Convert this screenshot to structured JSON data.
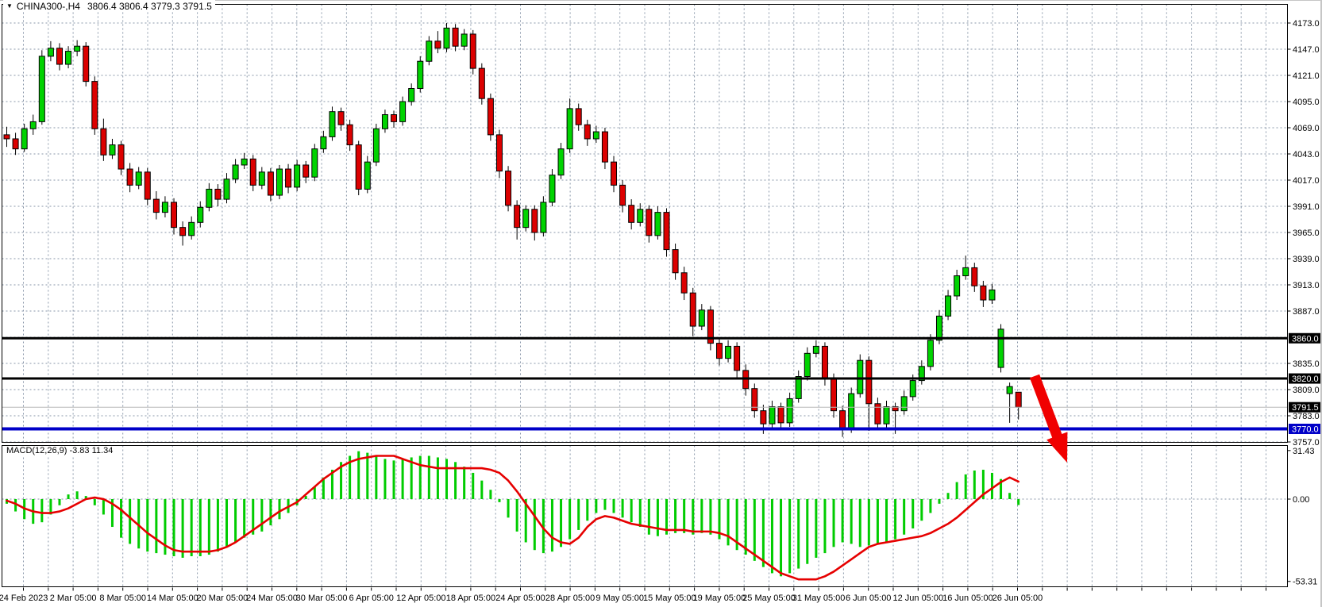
{
  "header": {
    "symbol_period": "CHINA300-,H4",
    "ohlc": "3806.4 3806.4 3779.3 3791.5"
  },
  "macd_label": "MACD(12,26,9) -3.83 11.34",
  "price_axis": {
    "ticks": [
      "4173.0",
      "4147.0",
      "4121.0",
      "4095.0",
      "4069.0",
      "4043.0",
      "4017.0",
      "3991.0",
      "3965.0",
      "3939.0",
      "3913.0",
      "3887.0",
      "3835.0",
      "3809.0",
      "3783.0",
      "3757.0"
    ]
  },
  "macd_axis": {
    "ticks": [
      "31.43",
      "0.00",
      "-53.31"
    ]
  },
  "time_axis": {
    "labels": [
      "24 Feb 2023",
      "2 Mar 05:00",
      "8 Mar 05:00",
      "14 Mar 05:00",
      "20 Mar 05:00",
      "24 Mar 05:00",
      "30 Mar 05:00",
      "6 Apr 05:00",
      "12 Apr 05:00",
      "18 Apr 05:00",
      "24 Apr 05:00",
      "28 Apr 05:00",
      "9 May 05:00",
      "15 May 05:00",
      "19 May 05:00",
      "25 May 05:00",
      "31 May 05:00",
      "6 Jun 05:00",
      "12 Jun 05:00",
      "16 Jun 05:00",
      "26 Jun 05:00"
    ]
  },
  "levels": [
    {
      "label": "3860.0",
      "value": 3860.0,
      "color": "#000000",
      "width": 3,
      "badge_bg": "#000000"
    },
    {
      "label": "3820.0",
      "value": 3820.0,
      "color": "#000000",
      "width": 3,
      "badge_bg": "#000000"
    },
    {
      "label": "3791.5",
      "value": 3791.5,
      "color": "#b8b8b8",
      "width": 1,
      "badge_bg": "#000000"
    },
    {
      "label": "3770.0",
      "value": 3770.0,
      "color": "#0000c8",
      "width": 4,
      "badge_bg": "#0000c8"
    }
  ],
  "annotation": {
    "type": "down-right-arrow",
    "color": "#f00000",
    "from": [
      1303,
      474
    ],
    "to": [
      1344,
      583
    ]
  },
  "colors": {
    "background": "#ffffff",
    "grid": "#8896a8",
    "bull": "#00d300",
    "bear": "#dc0000",
    "candle_outline": "#000000",
    "wick": "#000000",
    "signal_line": "#e60000",
    "macd_histogram": "#00cc00",
    "axis_text": "#000000",
    "badge_text": "#ffffff",
    "frame": "#000000"
  },
  "chart_data": [
    {
      "type": "candlestick",
      "title": "CHINA300- H4 price",
      "ylim": [
        3757,
        4173
      ],
      "y_step": 26,
      "ohlc": [
        [
          4062,
          4070,
          4050,
          4058
        ],
        [
          4058,
          4064,
          4042,
          4048
        ],
        [
          4048,
          4073,
          4045,
          4068
        ],
        [
          4068,
          4082,
          4062,
          4075
        ],
        [
          4075,
          4146,
          4072,
          4140
        ],
        [
          4140,
          4155,
          4135,
          4148
        ],
        [
          4148,
          4153,
          4126,
          4132
        ],
        [
          4132,
          4150,
          4128,
          4145
        ],
        [
          4145,
          4156,
          4140,
          4150
        ],
        [
          4150,
          4154,
          4110,
          4115
        ],
        [
          4115,
          4120,
          4062,
          4068
        ],
        [
          4068,
          4078,
          4036,
          4042
        ],
        [
          4042,
          4058,
          4038,
          4052
        ],
        [
          4052,
          4056,
          4022,
          4028
        ],
        [
          4028,
          4034,
          4005,
          4012
        ],
        [
          4012,
          4030,
          4008,
          4025
        ],
        [
          4025,
          4029,
          3992,
          3998
        ],
        [
          3998,
          4006,
          3978,
          3985
        ],
        [
          3985,
          4001,
          3980,
          3995
        ],
        [
          3995,
          3999,
          3963,
          3970
        ],
        [
          3970,
          3976,
          3952,
          3962
        ],
        [
          3962,
          3981,
          3958,
          3975
        ],
        [
          3975,
          3996,
          3970,
          3990
        ],
        [
          3990,
          4014,
          3986,
          4008
        ],
        [
          4008,
          4013,
          3991,
          3998
        ],
        [
          3998,
          4024,
          3994,
          4018
        ],
        [
          4018,
          4038,
          4014,
          4032
        ],
        [
          4032,
          4044,
          4028,
          4038
        ],
        [
          4038,
          4042,
          4006,
          4012
        ],
        [
          4012,
          4030,
          4008,
          4025
        ],
        [
          4025,
          4029,
          3996,
          4002
        ],
        [
          4002,
          4032,
          3998,
          4028
        ],
        [
          4028,
          4033,
          4004,
          4010
        ],
        [
          4010,
          4037,
          4006,
          4032
        ],
        [
          4032,
          4036,
          4014,
          4020
        ],
        [
          4020,
          4053,
          4016,
          4048
        ],
        [
          4048,
          4066,
          4044,
          4060
        ],
        [
          4060,
          4090,
          4056,
          4085
        ],
        [
          4085,
          4089,
          4066,
          4072
        ],
        [
          4072,
          4077,
          4046,
          4052
        ],
        [
          4052,
          4056,
          4002,
          4008
        ],
        [
          4008,
          4041,
          4004,
          4035
        ],
        [
          4035,
          4073,
          4031,
          4068
        ],
        [
          4068,
          4087,
          4064,
          4082
        ],
        [
          4082,
          4086,
          4069,
          4075
        ],
        [
          4075,
          4100,
          4071,
          4095
        ],
        [
          4095,
          4113,
          4091,
          4108
        ],
        [
          4108,
          4140,
          4104,
          4135
        ],
        [
          4135,
          4160,
          4131,
          4155
        ],
        [
          4155,
          4165,
          4143,
          4148
        ],
        [
          4148,
          4173,
          4144,
          4168
        ],
        [
          4168,
          4172,
          4145,
          4150
        ],
        [
          4150,
          4167,
          4146,
          4162
        ],
        [
          4162,
          4166,
          4122,
          4128
        ],
        [
          4128,
          4133,
          4092,
          4098
        ],
        [
          4098,
          4103,
          4056,
          4062
        ],
        [
          4062,
          4067,
          4019,
          4026
        ],
        [
          4026,
          4031,
          3986,
          3992
        ],
        [
          3992,
          3997,
          3958,
          3970
        ],
        [
          3970,
          3992,
          3966,
          3988
        ],
        [
          3988,
          3992,
          3957,
          3965
        ],
        [
          3965,
          4001,
          3961,
          3995
        ],
        [
          3995,
          4028,
          3991,
          4022
        ],
        [
          4022,
          4054,
          4018,
          4048
        ],
        [
          4048,
          4098,
          4044,
          4088
        ],
        [
          4088,
          4093,
          4066,
          4072
        ],
        [
          4072,
          4077,
          4051,
          4058
        ],
        [
          4058,
          4071,
          4054,
          4065
        ],
        [
          4065,
          4069,
          4028,
          4035
        ],
        [
          4035,
          4041,
          4005,
          4012
        ],
        [
          4012,
          4017,
          3985,
          3992
        ],
        [
          3992,
          3998,
          3968,
          3975
        ],
        [
          3975,
          3994,
          3971,
          3988
        ],
        [
          3988,
          3992,
          3955,
          3962
        ],
        [
          3962,
          3991,
          3958,
          3985
        ],
        [
          3985,
          3989,
          3941,
          3948
        ],
        [
          3948,
          3954,
          3918,
          3925
        ],
        [
          3925,
          3931,
          3898,
          3905
        ],
        [
          3905,
          3910,
          3862,
          3872
        ],
        [
          3872,
          3894,
          3868,
          3888
        ],
        [
          3888,
          3892,
          3848,
          3855
        ],
        [
          3855,
          3861,
          3833,
          3840
        ],
        [
          3840,
          3858,
          3836,
          3852
        ],
        [
          3852,
          3856,
          3821,
          3828
        ],
        [
          3828,
          3834,
          3803,
          3810
        ],
        [
          3810,
          3815,
          3781,
          3788
        ],
        [
          3788,
          3794,
          3765,
          3775
        ],
        [
          3775,
          3798,
          3771,
          3792
        ],
        [
          3792,
          3796,
          3769,
          3776
        ],
        [
          3776,
          3806,
          3772,
          3800
        ],
        [
          3800,
          3828,
          3796,
          3822
        ],
        [
          3822,
          3851,
          3818,
          3845
        ],
        [
          3845,
          3858,
          3841,
          3852
        ],
        [
          3852,
          3856,
          3813,
          3820
        ],
        [
          3820,
          3825,
          3781,
          3788
        ],
        [
          3788,
          3793,
          3762,
          3770
        ],
        [
          3770,
          3811,
          3766,
          3805
        ],
        [
          3805,
          3844,
          3801,
          3838
        ],
        [
          3838,
          3842,
          3768,
          3795
        ],
        [
          3795,
          3801,
          3769,
          3775
        ],
        [
          3775,
          3798,
          3771,
          3792
        ],
        [
          3792,
          3796,
          3765,
          3788
        ],
        [
          3788,
          3808,
          3784,
          3802
        ],
        [
          3802,
          3824,
          3798,
          3818
        ],
        [
          3818,
          3838,
          3814,
          3832
        ],
        [
          3832,
          3864,
          3828,
          3858
        ],
        [
          3858,
          3888,
          3854,
          3882
        ],
        [
          3882,
          3908,
          3878,
          3902
        ],
        [
          3902,
          3928,
          3898,
          3922
        ],
        [
          3922,
          3942,
          3918,
          3930
        ],
        [
          3930,
          3935,
          3906,
          3912
        ],
        [
          3912,
          3917,
          3891,
          3898
        ],
        [
          3898,
          3914,
          3894,
          3908
        ],
        [
          3831,
          3874,
          3826,
          3869
        ],
        [
          3805,
          3816,
          3776,
          3812
        ],
        [
          3806.4,
          3806.4,
          3779.3,
          3791.5
        ]
      ]
    },
    {
      "type": "bar",
      "name": "MACD histogram",
      "ylim": [
        -53.31,
        31.43
      ],
      "values": [
        -3,
        -8,
        -13,
        -16,
        -15,
        -10,
        -4,
        3,
        5,
        2,
        -4,
        -10,
        -18,
        -25,
        -29,
        -32,
        -34,
        -35,
        -36,
        -37,
        -38,
        -37,
        -37,
        -36,
        -34,
        -31,
        -28,
        -25,
        -23,
        -21,
        -17,
        -13,
        -9,
        -4,
        2,
        8,
        14,
        19,
        24,
        28,
        31,
        30,
        28,
        26,
        25,
        26,
        27,
        28,
        28,
        27,
        26,
        24,
        21,
        17,
        12,
        6,
        -2,
        -12,
        -21,
        -28,
        -33,
        -35,
        -34,
        -31,
        -26,
        -20,
        -14,
        -9,
        -7,
        -9,
        -12,
        -15,
        -18,
        -23,
        -24,
        -23,
        -22,
        -22,
        -23,
        -22,
        -23,
        -26,
        -30,
        -33,
        -36,
        -40,
        -44,
        -48,
        -50,
        -48,
        -45,
        -42,
        -38,
        -35,
        -31,
        -28,
        -29,
        -31,
        -30,
        -29,
        -28,
        -26,
        -23,
        -19,
        -14,
        -9,
        -3,
        4,
        11,
        16,
        18.5,
        19,
        17,
        13,
        4,
        -3.83
      ]
    },
    {
      "type": "line",
      "name": "MACD signal",
      "values": [
        -1,
        -3,
        -6,
        -8,
        -9,
        -9,
        -8,
        -6,
        -3,
        0,
        1,
        0,
        -3,
        -7,
        -12,
        -17,
        -22,
        -26,
        -30,
        -33,
        -34,
        -34,
        -34,
        -34,
        -33,
        -31,
        -28,
        -24,
        -20,
        -16,
        -12,
        -8,
        -5,
        -2,
        3,
        8,
        13,
        17,
        21,
        24,
        26,
        27,
        28,
        28,
        28,
        26,
        24,
        22,
        21,
        20,
        20,
        20,
        20,
        20,
        20,
        19,
        17,
        12,
        5,
        -3,
        -11,
        -19,
        -25,
        -28,
        -29,
        -25,
        -18,
        -13,
        -11,
        -12,
        -14,
        -16,
        -17,
        -18,
        -19,
        -20,
        -20,
        -20,
        -21,
        -21,
        -21,
        -22,
        -24,
        -28,
        -32,
        -36,
        -40,
        -44,
        -48,
        -50,
        -52,
        -52,
        -52,
        -50,
        -47,
        -43,
        -39,
        -35,
        -31,
        -29,
        -28,
        -27,
        -26,
        -25,
        -24,
        -22,
        -19,
        -16,
        -12,
        -7,
        -2,
        3,
        7,
        11,
        14,
        11.34
      ]
    }
  ]
}
